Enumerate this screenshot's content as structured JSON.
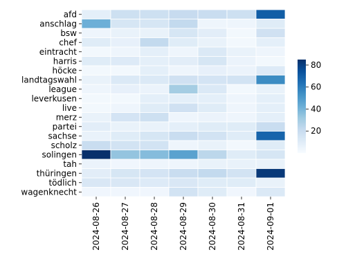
{
  "chart_data": {
    "type": "heatmap",
    "title": "",
    "xlabel": "",
    "ylabel": "",
    "rows": [
      "afd",
      "anschlag",
      "bsw",
      "chef",
      "eintracht",
      "harris",
      "höcke",
      "landtagswahl",
      "league",
      "leverkusen",
      "live",
      "merz",
      "partei",
      "sachse",
      "scholz",
      "solingen",
      "tah",
      "thüringen",
      "tödlich",
      "wagenknecht"
    ],
    "columns": [
      "2024-08-26",
      "2024-08-27",
      "2024-08-28",
      "2024-08-29",
      "2024-08-30",
      "2024-08-31",
      "2024-09-01"
    ],
    "values": [
      [
        8,
        18,
        18,
        21,
        20,
        18,
        70
      ],
      [
        42,
        14,
        14,
        22,
        4,
        4,
        10
      ],
      [
        4,
        6,
        6,
        14,
        9,
        2,
        17
      ],
      [
        10,
        7,
        22,
        10,
        6,
        2,
        8
      ],
      [
        2,
        4,
        8,
        4,
        12,
        6,
        4
      ],
      [
        10,
        11,
        8,
        9,
        14,
        5,
        2
      ],
      [
        2,
        2,
        8,
        4,
        7,
        5,
        11
      ],
      [
        6,
        12,
        12,
        17,
        15,
        16,
        55
      ],
      [
        4,
        7,
        5,
        30,
        12,
        2,
        6
      ],
      [
        2,
        2,
        8,
        8,
        8,
        4,
        8
      ],
      [
        2,
        4,
        10,
        17,
        10,
        4,
        8
      ],
      [
        6,
        15,
        18,
        4,
        5,
        4,
        8
      ],
      [
        9,
        6,
        6,
        8,
        10,
        10,
        20
      ],
      [
        6,
        10,
        14,
        20,
        16,
        10,
        68
      ],
      [
        20,
        16,
        16,
        4,
        6,
        2,
        10
      ],
      [
        85,
        34,
        37,
        47,
        24,
        10,
        14
      ],
      [
        5,
        3,
        4,
        4,
        6,
        6,
        6
      ],
      [
        9,
        14,
        15,
        20,
        22,
        16,
        82
      ],
      [
        13,
        13,
        11,
        13,
        10,
        10,
        6
      ],
      [
        3,
        3,
        3,
        16,
        10,
        3,
        12
      ]
    ],
    "colorbar": {
      "min": 0,
      "max": 85,
      "ticks": [
        20,
        40,
        60,
        80
      ],
      "colormap": "Blues"
    }
  }
}
